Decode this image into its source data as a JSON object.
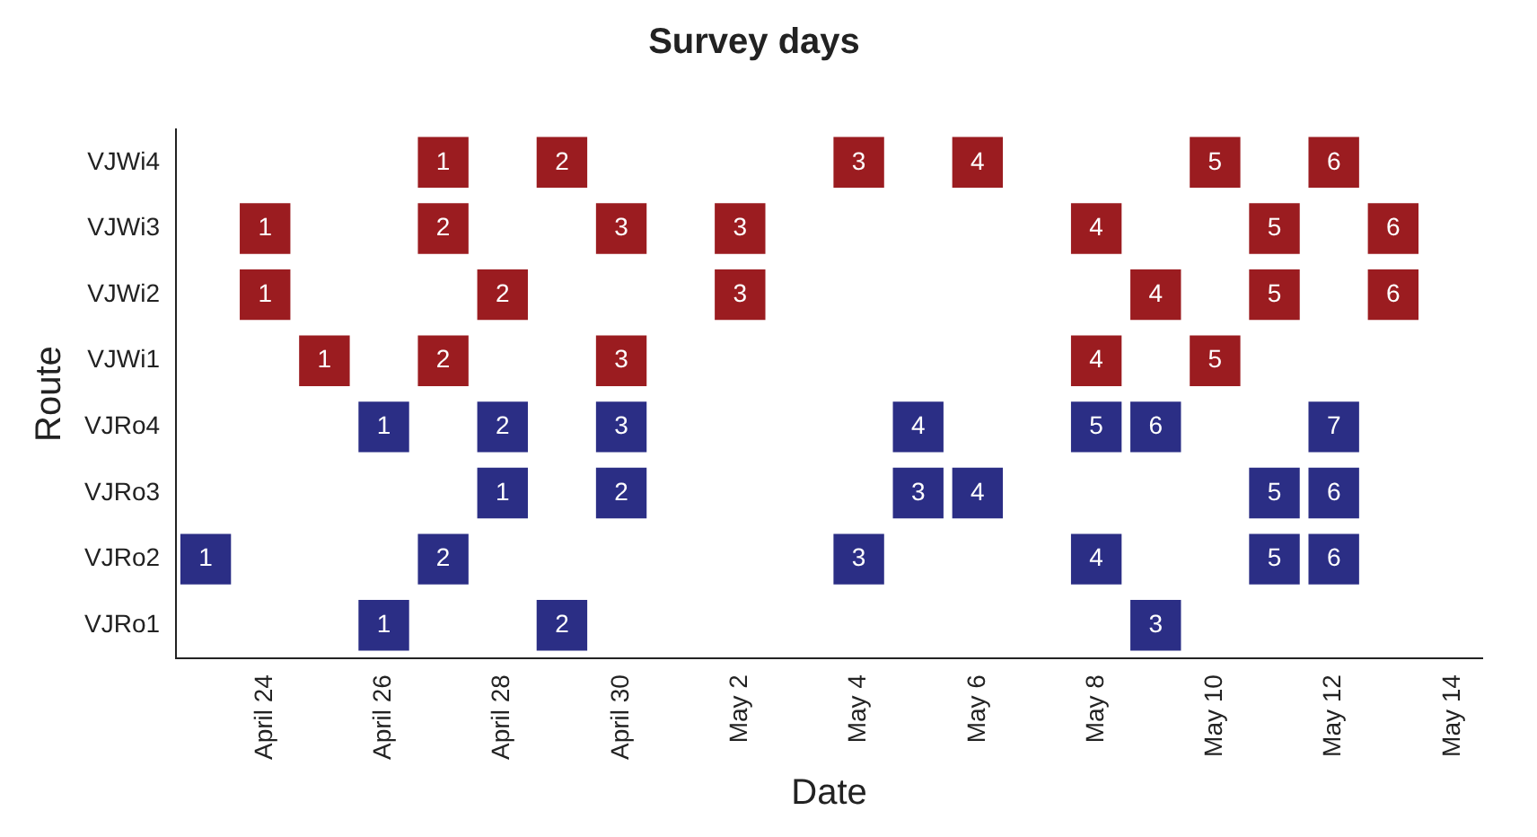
{
  "chart_data": {
    "type": "heatmap",
    "data_labels": true,
    "title": "Survey days",
    "xlabel": "Date",
    "ylabel": "Route",
    "categories": [
      null,
      "April 24",
      null,
      "April 26",
      null,
      "April 28",
      null,
      "April 30",
      null,
      "May 2",
      null,
      "May 4",
      null,
      "May 6",
      null,
      "May 8",
      null,
      "May 10",
      null,
      "May 12",
      null,
      "May 14"
    ],
    "y_categories": [
      "VJWi4",
      "VJWi3",
      "VJWi2",
      "VJWi1",
      "VJRo4",
      "VJRo3",
      "VJRo2",
      "VJRo1"
    ],
    "colors": [
      "#9b1c20",
      "#9b1c20",
      "#9b1c20",
      "#9b1c20",
      "#2b2e85",
      "#2b2e85",
      "#2b2e85",
      "#2b2e85"
    ],
    "cells": [
      [
        null,
        null,
        null,
        null,
        1,
        null,
        2,
        null,
        null,
        null,
        null,
        3,
        null,
        4,
        null,
        null,
        null,
        5,
        null,
        6,
        null,
        null
      ],
      [
        null,
        1,
        null,
        null,
        2,
        null,
        null,
        3,
        null,
        3,
        null,
        null,
        null,
        null,
        null,
        4,
        null,
        null,
        5,
        null,
        6,
        null
      ],
      [
        null,
        1,
        null,
        null,
        null,
        2,
        null,
        null,
        null,
        3,
        null,
        null,
        null,
        null,
        null,
        null,
        4,
        null,
        5,
        null,
        6,
        null
      ],
      [
        null,
        null,
        1,
        null,
        2,
        null,
        null,
        3,
        null,
        null,
        null,
        null,
        null,
        null,
        null,
        4,
        null,
        5,
        null,
        null,
        null,
        null
      ],
      [
        null,
        null,
        null,
        1,
        null,
        2,
        null,
        3,
        null,
        null,
        null,
        null,
        4,
        null,
        null,
        5,
        6,
        null,
        null,
        7,
        null,
        null
      ],
      [
        null,
        null,
        null,
        null,
        null,
        1,
        null,
        2,
        null,
        null,
        null,
        null,
        3,
        4,
        null,
        null,
        null,
        null,
        5,
        6,
        null,
        null
      ],
      [
        1,
        null,
        null,
        null,
        2,
        null,
        null,
        null,
        null,
        null,
        null,
        3,
        null,
        null,
        null,
        4,
        null,
        null,
        5,
        6,
        null,
        null
      ],
      [
        null,
        null,
        null,
        1,
        null,
        null,
        2,
        null,
        null,
        null,
        null,
        null,
        null,
        null,
        null,
        null,
        3,
        null,
        null,
        null,
        null,
        null
      ]
    ]
  }
}
